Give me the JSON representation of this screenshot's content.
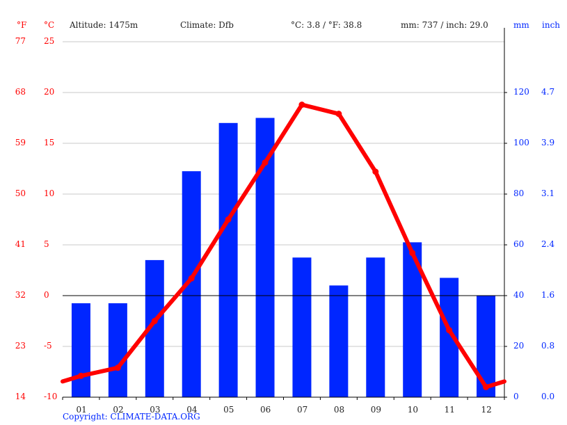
{
  "header": {
    "unit_f": "°F",
    "unit_c": "°C",
    "altitude": "Altitude: 1475m",
    "climate": "Climate: Dfb",
    "temp_summary": "°C: 3.8 / °F: 38.8",
    "precip_summary": "mm: 737 / inch: 29.0",
    "unit_mm": "mm",
    "unit_inch": "inch"
  },
  "axes": {
    "left_f": [
      "77",
      "68",
      "59",
      "50",
      "41",
      "32",
      "23",
      "14"
    ],
    "left_c": [
      "25",
      "20",
      "15",
      "10",
      "5",
      "0",
      "-5",
      "-10"
    ],
    "right_mm": [
      "120",
      "100",
      "80",
      "60",
      "40",
      "20",
      "0"
    ],
    "right_inch": [
      "4.7",
      "3.9",
      "3.1",
      "2.4",
      "1.6",
      "0.8",
      "0.0"
    ],
    "months": [
      "01",
      "02",
      "03",
      "04",
      "05",
      "06",
      "07",
      "08",
      "09",
      "10",
      "11",
      "12"
    ]
  },
  "footer": {
    "copyright": "Copyright: CLIMATE-DATA.ORG"
  },
  "colors": {
    "temperature": "#ff0000",
    "precipitation": "#0026ff",
    "grid": "#c8c8c8",
    "axis": "#000000"
  },
  "chart_data": {
    "type": "bar+line",
    "title": "",
    "categories": [
      "01",
      "02",
      "03",
      "04",
      "05",
      "06",
      "07",
      "08",
      "09",
      "10",
      "11",
      "12"
    ],
    "series": [
      {
        "name": "Precipitation (mm)",
        "type": "bar",
        "axis": "right",
        "color": "#0026ff",
        "values": [
          37,
          37,
          54,
          89,
          108,
          110,
          55,
          44,
          55,
          61,
          47,
          40
        ]
      },
      {
        "name": "Temperature (°C)",
        "type": "line",
        "axis": "left",
        "color": "#ff0000",
        "values": [
          -7.9,
          -7.1,
          -2.5,
          1.7,
          7.5,
          13.1,
          18.8,
          17.9,
          12.2,
          4.2,
          -3.4,
          -9.0
        ]
      }
    ],
    "left_axis": {
      "label": "°C",
      "ylim": [
        -10,
        25
      ],
      "ticks": [
        -10,
        -5,
        0,
        5,
        10,
        15,
        20,
        25
      ],
      "secondary_label": "°F",
      "secondary_ticks": [
        14,
        23,
        32,
        41,
        50,
        59,
        68,
        77
      ]
    },
    "right_axis": {
      "label": "mm",
      "ylim": [
        0,
        140
      ],
      "ticks": [
        0,
        20,
        40,
        60,
        80,
        100,
        120
      ],
      "secondary_label": "inch",
      "secondary_ticks": [
        0.0,
        0.8,
        1.6,
        2.4,
        3.1,
        3.9,
        4.7
      ]
    },
    "annotations": [
      "Altitude: 1475m",
      "Climate: Dfb",
      "°C: 3.8 / °F: 38.8",
      "mm: 737 / inch: 29.0"
    ],
    "grid": true
  }
}
